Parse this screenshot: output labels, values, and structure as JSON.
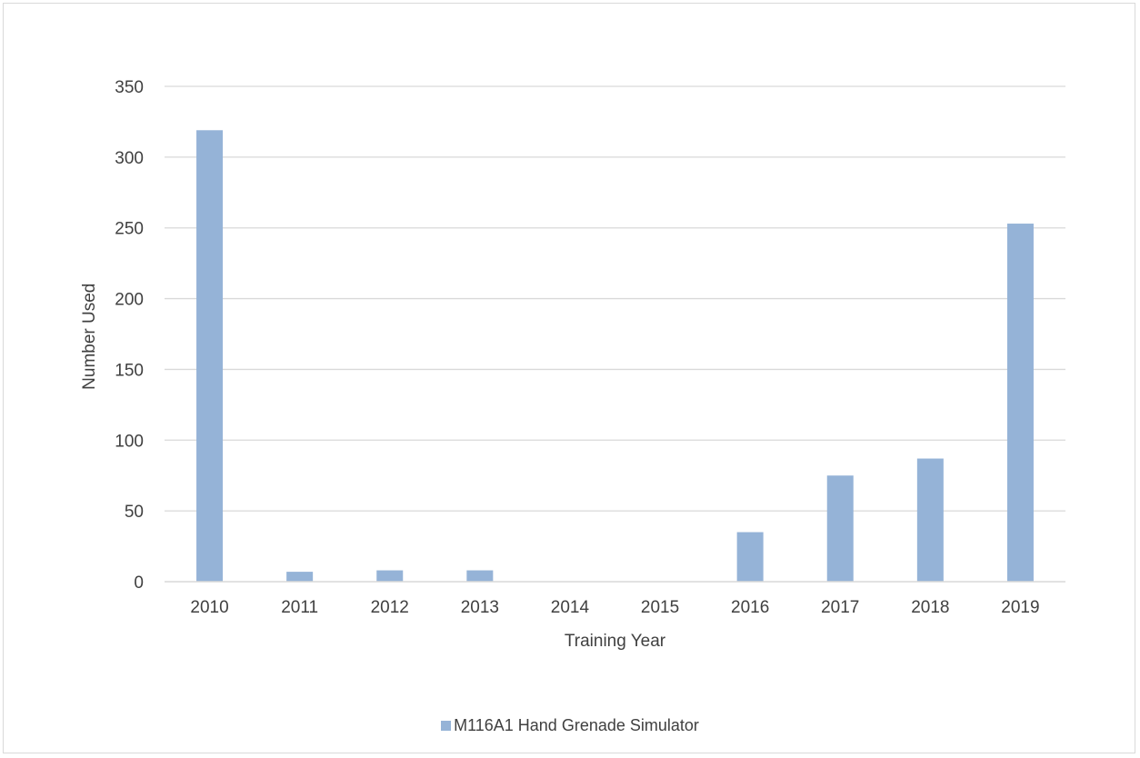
{
  "chart_data": {
    "type": "bar",
    "title": "",
    "xlabel": "Training Year",
    "ylabel": "Number Used",
    "categories": [
      "2010",
      "2011",
      "2012",
      "2013",
      "2014",
      "2015",
      "2016",
      "2017",
      "2018",
      "2019"
    ],
    "series": [
      {
        "name": "M116A1 Hand Grenade Simulator",
        "values": [
          319,
          7,
          8,
          8,
          0,
          0,
          35,
          75,
          87,
          253
        ],
        "color": "#95b3d7"
      }
    ],
    "ylim": [
      0,
      350
    ],
    "yticks": [
      0,
      50,
      100,
      150,
      200,
      250,
      300,
      350
    ],
    "grid": true,
    "legend_position": "bottom"
  }
}
